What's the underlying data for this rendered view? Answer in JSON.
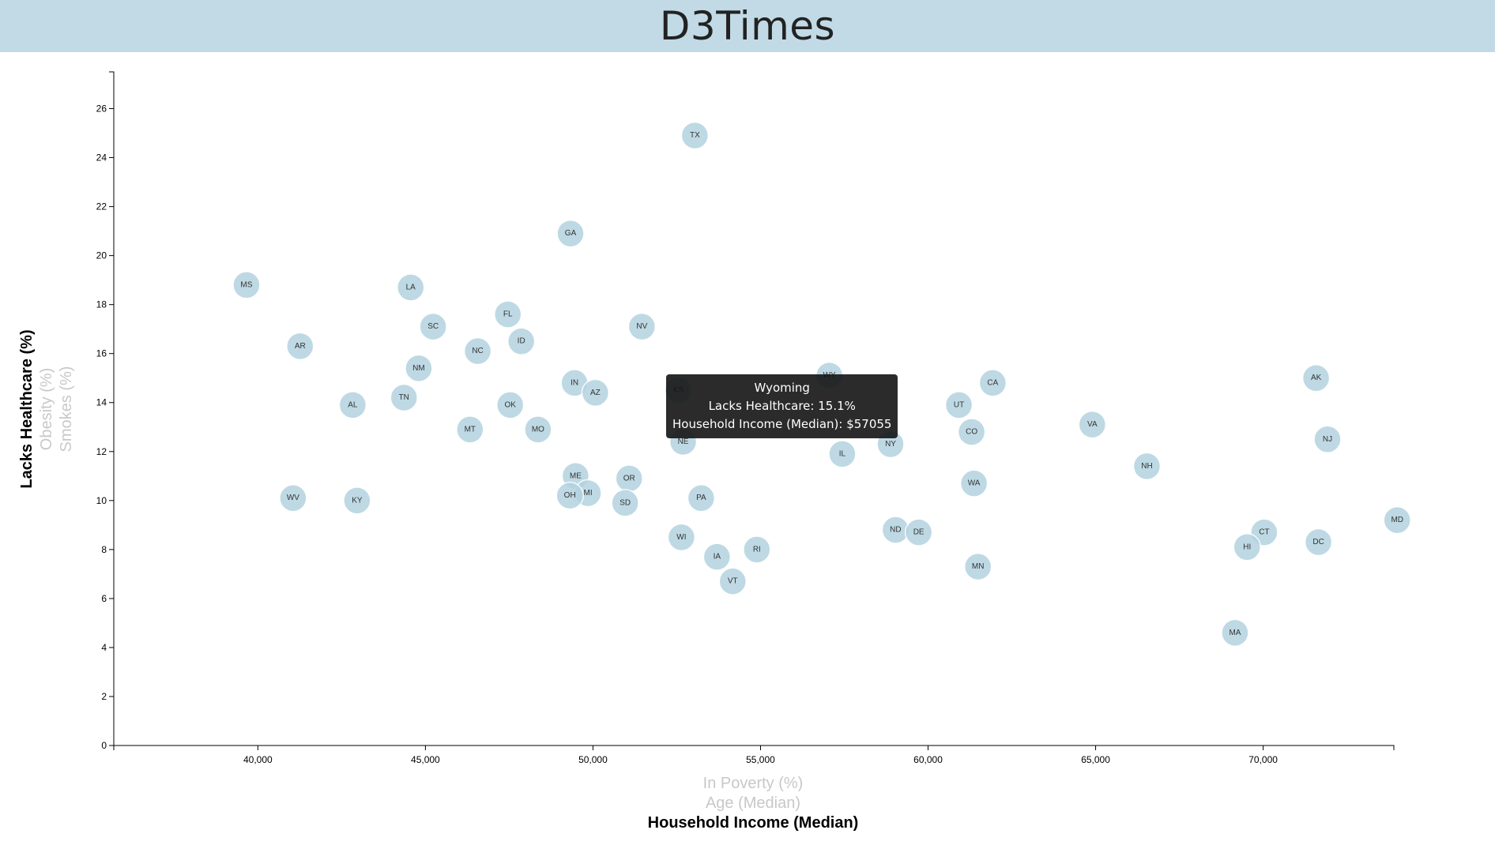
{
  "header": {
    "title": "D3Times"
  },
  "tooltip": {
    "state": "Wyoming",
    "line1": "Lacks Healthcare: 15.1%",
    "line2": "Household Income (Median): $57055"
  },
  "chart_data": {
    "type": "scatter",
    "xlim": [
      35700,
      73900
    ],
    "ylim": [
      0,
      27.5
    ],
    "x_ticks": [
      40000,
      45000,
      50000,
      55000,
      60000,
      65000,
      70000
    ],
    "x_tick_labels": [
      "40,000",
      "45,000",
      "50,000",
      "55,000",
      "60,000",
      "65,000",
      "70,000"
    ],
    "y_ticks": [
      0,
      2,
      4,
      6,
      8,
      10,
      12,
      14,
      16,
      18,
      20,
      22,
      24,
      26
    ],
    "y_tick_labels": [
      "0",
      "2",
      "4",
      "6",
      "8",
      "10",
      "12",
      "14",
      "16",
      "18",
      "20",
      "22",
      "24",
      "26"
    ],
    "x_axis_labels": [
      {
        "text": "In Poverty (%)",
        "active": false
      },
      {
        "text": "Age (Median)",
        "active": false
      },
      {
        "text": "Household Income (Median)",
        "active": true
      }
    ],
    "y_axis_labels": [
      {
        "text": "Lacks Healthcare (%)",
        "active": true
      },
      {
        "text": "Obesity (%)",
        "active": false
      },
      {
        "text": "Smokes (%)",
        "active": false
      }
    ],
    "grid": false,
    "points": [
      {
        "abbr": "TX",
        "x": 53040,
        "y": 24.9
      },
      {
        "abbr": "GA",
        "x": 49330,
        "y": 20.9
      },
      {
        "abbr": "MS",
        "x": 39660,
        "y": 18.8
      },
      {
        "abbr": "LA",
        "x": 44560,
        "y": 18.7
      },
      {
        "abbr": "FL",
        "x": 47460,
        "y": 17.6
      },
      {
        "abbr": "SC",
        "x": 45230,
        "y": 17.1
      },
      {
        "abbr": "NV",
        "x": 51460,
        "y": 17.1
      },
      {
        "abbr": "ID",
        "x": 47860,
        "y": 16.5
      },
      {
        "abbr": "AR",
        "x": 41260,
        "y": 16.3
      },
      {
        "abbr": "NC",
        "x": 46560,
        "y": 16.1
      },
      {
        "abbr": "NM",
        "x": 44800,
        "y": 15.4
      },
      {
        "abbr": "WY",
        "x": 57055,
        "y": 15.1
      },
      {
        "abbr": "AK",
        "x": 71580,
        "y": 15.0
      },
      {
        "abbr": "IN",
        "x": 49450,
        "y": 14.8
      },
      {
        "abbr": "CA",
        "x": 61930,
        "y": 14.8
      },
      {
        "abbr": "KS",
        "x": 52550,
        "y": 14.5
      },
      {
        "abbr": "AZ",
        "x": 50070,
        "y": 14.4
      },
      {
        "abbr": "TN",
        "x": 44360,
        "y": 14.2
      },
      {
        "abbr": "AL",
        "x": 42830,
        "y": 13.9
      },
      {
        "abbr": "OK",
        "x": 47530,
        "y": 13.9
      },
      {
        "abbr": "UT",
        "x": 60920,
        "y": 13.9
      },
      {
        "abbr": "VA",
        "x": 64900,
        "y": 13.1
      },
      {
        "abbr": "MT",
        "x": 46330,
        "y": 12.9
      },
      {
        "abbr": "MO",
        "x": 48360,
        "y": 12.9
      },
      {
        "abbr": "CO",
        "x": 61300,
        "y": 12.8
      },
      {
        "abbr": "NJ",
        "x": 71920,
        "y": 12.5
      },
      {
        "abbr": "NE",
        "x": 52690,
        "y": 12.4
      },
      {
        "abbr": "NY",
        "x": 58880,
        "y": 12.3
      },
      {
        "abbr": "IL",
        "x": 57440,
        "y": 11.9
      },
      {
        "abbr": "NH",
        "x": 66530,
        "y": 11.4
      },
      {
        "abbr": "ME",
        "x": 49480,
        "y": 11.0
      },
      {
        "abbr": "OR",
        "x": 51080,
        "y": 10.9
      },
      {
        "abbr": "WA",
        "x": 61370,
        "y": 10.7
      },
      {
        "abbr": "MI",
        "x": 49850,
        "y": 10.3
      },
      {
        "abbr": "OH",
        "x": 49310,
        "y": 10.2
      },
      {
        "abbr": "PA",
        "x": 53230,
        "y": 10.1
      },
      {
        "abbr": "WV",
        "x": 41050,
        "y": 10.1
      },
      {
        "abbr": "KY",
        "x": 42960,
        "y": 10.0
      },
      {
        "abbr": "SD",
        "x": 50960,
        "y": 9.9
      },
      {
        "abbr": "MD",
        "x": 74000,
        "y": 9.2
      },
      {
        "abbr": "ND",
        "x": 59030,
        "y": 8.8
      },
      {
        "abbr": "CT",
        "x": 70030,
        "y": 8.7
      },
      {
        "abbr": "DE",
        "x": 59720,
        "y": 8.7
      },
      {
        "abbr": "WI",
        "x": 52640,
        "y": 8.5
      },
      {
        "abbr": "DC",
        "x": 71650,
        "y": 8.3
      },
      {
        "abbr": "HI",
        "x": 69520,
        "y": 8.1
      },
      {
        "abbr": "RI",
        "x": 54890,
        "y": 8.0
      },
      {
        "abbr": "IA",
        "x": 53700,
        "y": 7.7
      },
      {
        "abbr": "MN",
        "x": 61490,
        "y": 7.3
      },
      {
        "abbr": "VT",
        "x": 54170,
        "y": 6.7
      },
      {
        "abbr": "MA",
        "x": 69160,
        "y": 4.6
      }
    ]
  }
}
